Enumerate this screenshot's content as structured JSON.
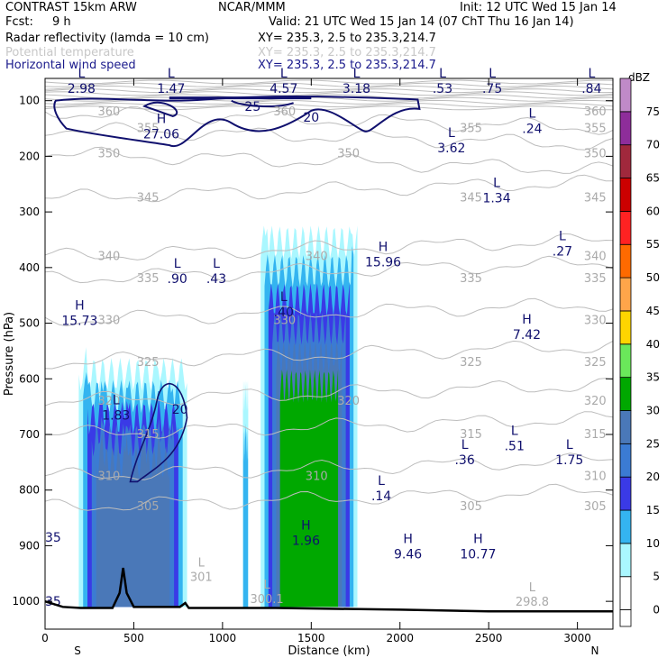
{
  "header": {
    "model": "CONTRAST 15km ARW",
    "center": "NCAR/MMM",
    "init": "Init: 12 UTC Wed 15 Jan 14",
    "fcst_label": "Fcst:",
    "fcst_value": "9 h",
    "valid": "Valid: 21 UTC Wed 15 Jan 14 (07 ChT Thu 16 Jan 14)",
    "fields": [
      {
        "name": "Radar reflectivity (lamda = 10 cm)",
        "xy": "XY= 235.3,  2.5 to 235.3,214.7",
        "color": "#000000"
      },
      {
        "name": "Potential temperature",
        "xy": "XY= 235.3,  2.5 to 235.3,214.7",
        "color": "#c8c8c8"
      },
      {
        "name": "Horizontal wind speed",
        "xy": "XY= 235.3,  2.5 to 235.3,214.7",
        "color": "#1b1b8c"
      }
    ]
  },
  "chart_data": {
    "type": "heatmap",
    "xlabel": "Distance (km)",
    "ylabel": "Pressure (hPa)",
    "x_ticks": [
      0,
      500,
      1000,
      1500,
      2000,
      2500,
      3000
    ],
    "y_ticks": [
      100,
      200,
      300,
      400,
      500,
      600,
      700,
      800,
      900,
      1000
    ],
    "xlim": [
      0,
      3200
    ],
    "ylim": [
      1050,
      60
    ],
    "x_end_labels": {
      "left": "S",
      "right": "N"
    },
    "colorbar": {
      "unit": "dBZ",
      "levels": [
        0,
        5,
        10,
        15,
        20,
        25,
        30,
        35,
        40,
        45,
        50,
        55,
        60,
        65,
        70,
        75
      ],
      "colors": [
        "#ffffff",
        "#aaf7ff",
        "#34b4f0",
        "#3a3ae6",
        "#3b7bd3",
        "#4a78b8",
        "#00a800",
        "#6ae85a",
        "#ffd500",
        "#ffa54a",
        "#ff6a00",
        "#ff2222",
        "#cc0000",
        "#a0283c",
        "#8e2d9a",
        "#c08ac8"
      ]
    },
    "reflectivity_columns": [
      {
        "x0": 190,
        "x1": 800,
        "top": 570,
        "max_dbz": 25
      },
      {
        "x0": 1115,
        "x1": 1145,
        "top": 610,
        "max_dbz": 10
      },
      {
        "x0": 1215,
        "x1": 1760,
        "top": 320,
        "max_dbz": 30
      }
    ],
    "theta_contours": [
      {
        "label": "360",
        "p": 120
      },
      {
        "label": "355",
        "p": 150
      },
      {
        "label": "350",
        "p": 195
      },
      {
        "label": "345",
        "p": 275
      },
      {
        "label": "340",
        "p": 380
      },
      {
        "label": "335",
        "p": 420
      },
      {
        "label": "330",
        "p": 495
      },
      {
        "label": "325",
        "p": 570
      },
      {
        "label": "320",
        "p": 640
      },
      {
        "label": "315",
        "p": 700
      },
      {
        "label": "310",
        "p": 775
      },
      {
        "label": "305",
        "p": 830
      }
    ],
    "theta_extrema": [
      {
        "kind": "L",
        "value": "301",
        "x": 880,
        "p": 960
      },
      {
        "kind": "L",
        "value": "300.1",
        "x": 1250,
        "p": 1000
      },
      {
        "kind": "L",
        "value": "298.8",
        "x": 2745,
        "p": 1005
      }
    ],
    "wind_contours": [
      {
        "label": "20",
        "x": 1500,
        "p": 130
      },
      {
        "label": "25",
        "x": 1170,
        "p": 110
      },
      {
        "label": "20",
        "x": 760,
        "p": 655
      }
    ],
    "wind_extrema": [
      {
        "kind": "L",
        "value": "2.98",
        "x": 205,
        "p": 78
      },
      {
        "kind": "L",
        "value": "1.47",
        "x": 710,
        "p": 78
      },
      {
        "kind": "L",
        "value": "4.57",
        "x": 1345,
        "p": 78
      },
      {
        "kind": "L",
        "value": "3.18",
        "x": 1755,
        "p": 78
      },
      {
        "kind": "L",
        "value": ".53",
        "x": 2240,
        "p": 78
      },
      {
        "kind": "L",
        "value": ".75",
        "x": 2520,
        "p": 78
      },
      {
        "kind": "L",
        "value": ".84",
        "x": 3080,
        "p": 78
      },
      {
        "kind": "H",
        "value": "27.06",
        "x": 655,
        "p": 160
      },
      {
        "kind": "L",
        "value": "3.62",
        "x": 2290,
        "p": 185
      },
      {
        "kind": "L",
        "value": ".24",
        "x": 2745,
        "p": 150
      },
      {
        "kind": "L",
        "value": "1.34",
        "x": 2545,
        "p": 275
      },
      {
        "kind": "L",
        "value": ".27",
        "x": 2915,
        "p": 370
      },
      {
        "kind": "H",
        "value": "15.96",
        "x": 1905,
        "p": 390
      },
      {
        "kind": "L",
        "value": ".90",
        "x": 745,
        "p": 420
      },
      {
        "kind": "L",
        "value": ".43",
        "x": 965,
        "p": 420
      },
      {
        "kind": "L",
        "value": ".40",
        "x": 1345,
        "p": 480
      },
      {
        "kind": "H",
        "value": "15.73",
        "x": 195,
        "p": 495
      },
      {
        "kind": "H",
        "value": "7.42",
        "x": 2715,
        "p": 520
      },
      {
        "kind": "L",
        "value": "1.83",
        "x": 400,
        "p": 665
      },
      {
        "kind": "L",
        "value": ".51",
        "x": 2645,
        "p": 720
      },
      {
        "kind": "L",
        "value": ".36",
        "x": 2365,
        "p": 745
      },
      {
        "kind": "L",
        "value": "1.75",
        "x": 2955,
        "p": 745
      },
      {
        "kind": "L",
        "value": ".14",
        "x": 1895,
        "p": 810
      },
      {
        "kind": "H",
        "value": "1.96",
        "x": 1470,
        "p": 890
      },
      {
        "kind": "H",
        "value": "9.46",
        "x": 2045,
        "p": 915
      },
      {
        "kind": "H",
        "value": "10.77",
        "x": 2440,
        "p": 915
      }
    ],
    "edge_labels": [
      {
        "value": "35",
        "x": 45,
        "p": 885
      },
      {
        "value": "35",
        "x": 45,
        "p": 1000
      }
    ]
  }
}
